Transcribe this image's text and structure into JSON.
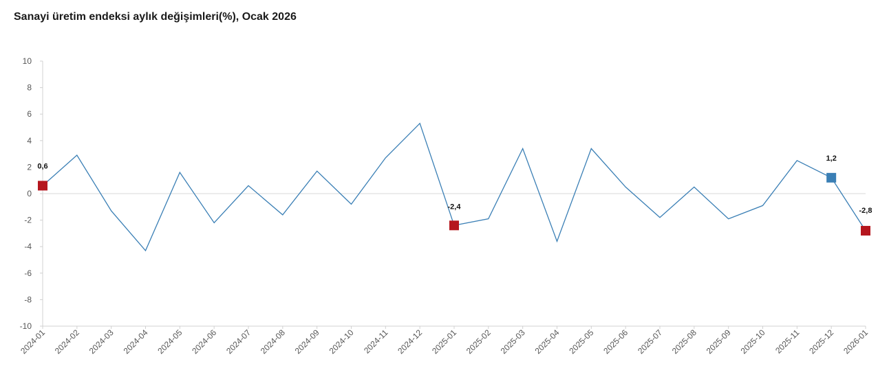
{
  "chart_data": {
    "type": "line",
    "title": "Sanayi üretim endeksi aylık değişimleri(%), Ocak 2026",
    "xlabel": "",
    "ylabel": "",
    "ylim": [
      -10,
      10
    ],
    "yticks": [
      "10",
      "8",
      "6",
      "4",
      "2",
      "0",
      "-2",
      "-4",
      "-6",
      "-8",
      "-10"
    ],
    "categories": [
      "2024-01",
      "2024-02",
      "2024-03",
      "2024-04",
      "2024-05",
      "2024-06",
      "2024-07",
      "2024-08",
      "2024-09",
      "2024-10",
      "2024-11",
      "2024-12",
      "2025-01",
      "2025-02",
      "2025-03",
      "2025-04",
      "2025-05",
      "2025-06",
      "2025-07",
      "2025-08",
      "2025-09",
      "2025-10",
      "2025-11",
      "2025-12",
      "2026-01"
    ],
    "series": [
      {
        "values": [
          0.6,
          2.9,
          -1.3,
          -4.3,
          1.6,
          -2.2,
          0.6,
          -1.6,
          1.7,
          -0.8,
          2.7,
          5.3,
          -2.4,
          -1.9,
          3.4,
          -3.6,
          3.4,
          0.5,
          -1.8,
          0.5,
          -1.9,
          -0.9,
          2.5,
          1.2,
          -2.8
        ],
        "color": "#3a7fb5"
      }
    ],
    "highlights": [
      {
        "index": 0,
        "label": "0,6",
        "color": "#b5161e"
      },
      {
        "index": 12,
        "label": "-2,4",
        "color": "#b5161e"
      },
      {
        "index": 23,
        "label": "1,2",
        "color": "#3a7fb5"
      },
      {
        "index": 24,
        "label": "-2,8",
        "color": "#b5161e"
      }
    ],
    "grid": false,
    "legend": "none"
  }
}
